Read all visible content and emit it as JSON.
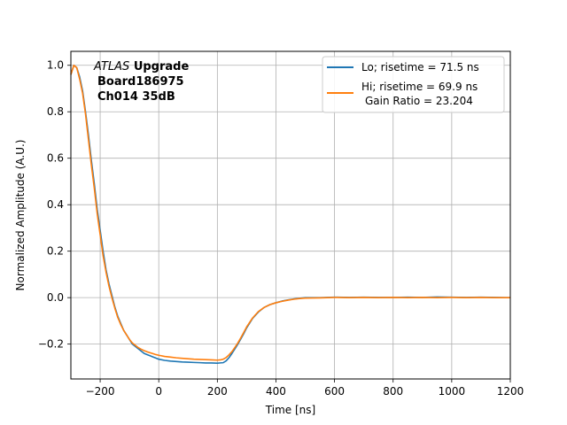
{
  "chart_data": {
    "type": "line",
    "xlabel": "Time [ns]",
    "ylabel": "Normalized Amplitude (A.U.)",
    "xlim": [
      -300,
      1200
    ],
    "ylim": [
      -0.35,
      1.06
    ],
    "xticks": [
      -200,
      0,
      200,
      400,
      600,
      800,
      1000,
      1200
    ],
    "yticks": [
      -0.2,
      0.0,
      0.2,
      0.4,
      0.6,
      0.8,
      1.0
    ],
    "xtick_labels": [
      "−200",
      "0",
      "200",
      "400",
      "600",
      "800",
      "1000",
      "1200"
    ],
    "ytick_labels": [
      "−0.2",
      "0.0",
      "0.2",
      "0.4",
      "0.6",
      "0.8",
      "1.0"
    ],
    "grid": true,
    "legend_position": "top-right",
    "annotation": {
      "atlas": "ATLAS",
      "upgrade": "Upgrade",
      "board": "Board186975",
      "channel": "Ch014 35dB"
    },
    "series": [
      {
        "name": "Lo; risetime = 71.5 ns",
        "color": "#1f77b4",
        "x": [
          -300,
          -290,
          -280,
          -270,
          -260,
          -250,
          -240,
          -230,
          -220,
          -210,
          -200,
          -190,
          -180,
          -170,
          -160,
          -150,
          -140,
          -130,
          -120,
          -110,
          -100,
          -90,
          -80,
          -70,
          -60,
          -50,
          -40,
          -30,
          -20,
          -10,
          0,
          20,
          40,
          60,
          80,
          100,
          120,
          140,
          160,
          180,
          200,
          210,
          220,
          230,
          240,
          250,
          260,
          270,
          280,
          290,
          300,
          320,
          340,
          360,
          380,
          400,
          420,
          440,
          460,
          480,
          500,
          550,
          600,
          650,
          700,
          750,
          800,
          850,
          900,
          950,
          1000,
          1050,
          1100,
          1150,
          1200
        ],
        "y": [
          0.96,
          1.0,
          0.99,
          0.95,
          0.89,
          0.8,
          0.7,
          0.59,
          0.49,
          0.38,
          0.29,
          0.2,
          0.12,
          0.06,
          0.01,
          -0.04,
          -0.08,
          -0.11,
          -0.14,
          -0.16,
          -0.18,
          -0.2,
          -0.21,
          -0.22,
          -0.23,
          -0.24,
          -0.245,
          -0.25,
          -0.255,
          -0.26,
          -0.265,
          -0.27,
          -0.273,
          -0.275,
          -0.277,
          -0.278,
          -0.279,
          -0.28,
          -0.281,
          -0.281,
          -0.282,
          -0.281,
          -0.28,
          -0.272,
          -0.258,
          -0.24,
          -0.22,
          -0.2,
          -0.178,
          -0.155,
          -0.13,
          -0.09,
          -0.062,
          -0.042,
          -0.03,
          -0.022,
          -0.015,
          -0.01,
          -0.006,
          -0.003,
          0.0,
          0.0,
          0.002,
          0.001,
          0.002,
          0.001,
          0.001,
          0.002,
          0.001,
          0.003,
          0.002,
          0.001,
          0.002,
          0.001,
          0.0
        ]
      },
      {
        "name": "Hi; risetime = 69.9 ns",
        "name_line2": "Gain Ratio = 23.204",
        "color": "#ff7f0e",
        "x": [
          -300,
          -290,
          -280,
          -270,
          -260,
          -250,
          -240,
          -230,
          -220,
          -210,
          -200,
          -190,
          -180,
          -170,
          -160,
          -150,
          -140,
          -130,
          -120,
          -110,
          -100,
          -90,
          -80,
          -70,
          -60,
          -50,
          -40,
          -30,
          -20,
          -10,
          0,
          20,
          40,
          60,
          80,
          100,
          120,
          140,
          160,
          180,
          200,
          210,
          220,
          230,
          240,
          250,
          260,
          270,
          280,
          290,
          300,
          320,
          340,
          360,
          380,
          400,
          420,
          440,
          460,
          480,
          500,
          550,
          600,
          650,
          700,
          750,
          800,
          850,
          900,
          950,
          1000,
          1050,
          1100,
          1150,
          1200
        ],
        "y": [
          0.96,
          1.0,
          0.99,
          0.94,
          0.88,
          0.79,
          0.68,
          0.57,
          0.47,
          0.36,
          0.27,
          0.18,
          0.11,
          0.05,
          0.0,
          -0.045,
          -0.085,
          -0.115,
          -0.14,
          -0.16,
          -0.18,
          -0.195,
          -0.205,
          -0.215,
          -0.222,
          -0.228,
          -0.233,
          -0.237,
          -0.241,
          -0.245,
          -0.248,
          -0.253,
          -0.256,
          -0.259,
          -0.261,
          -0.263,
          -0.265,
          -0.266,
          -0.267,
          -0.268,
          -0.269,
          -0.268,
          -0.265,
          -0.258,
          -0.246,
          -0.232,
          -0.214,
          -0.195,
          -0.173,
          -0.15,
          -0.126,
          -0.088,
          -0.06,
          -0.042,
          -0.03,
          -0.022,
          -0.016,
          -0.011,
          -0.007,
          -0.004,
          -0.002,
          -0.001,
          0.001,
          0.0,
          0.001,
          0.0,
          0.001,
          0.0,
          0.001,
          0.0,
          0.001,
          0.0,
          0.001,
          0.0,
          0.0
        ]
      }
    ]
  }
}
